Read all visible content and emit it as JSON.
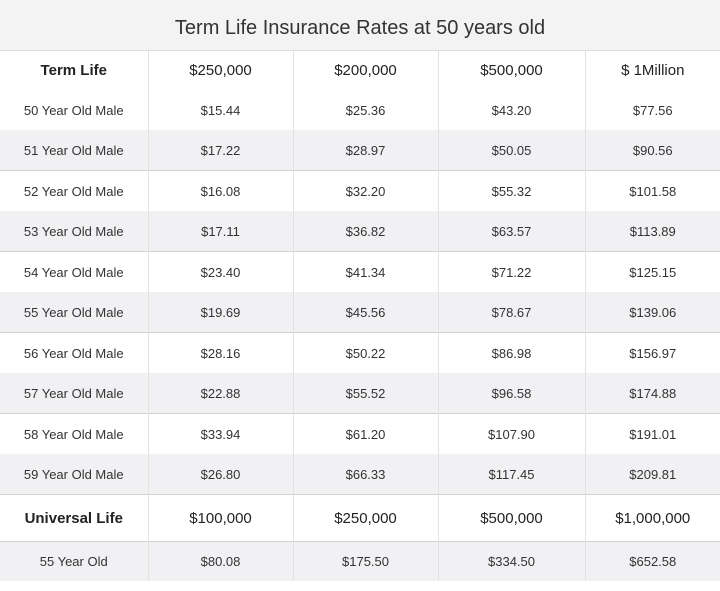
{
  "title": "Term Life Insurance Rates at 50 years old",
  "term_life": {
    "header": [
      "Term Life",
      "$250,000",
      "$200,000",
      "$500,000",
      "$ 1Million"
    ],
    "rows": [
      [
        "50 Year Old Male",
        "$15.44",
        "$25.36",
        "$43.20",
        "$77.56"
      ],
      [
        "51 Year Old Male",
        "$17.22",
        "$28.97",
        "$50.05",
        "$90.56"
      ],
      [
        "52 Year Old Male",
        "$16.08",
        "$32.20",
        "$55.32",
        "$101.58"
      ],
      [
        "53 Year Old Male",
        "$17.11",
        "$36.82",
        "$63.57",
        "$113.89"
      ],
      [
        "54 Year Old Male",
        "$23.40",
        "$41.34",
        "$71.22",
        "$125.15"
      ],
      [
        "55 Year Old Male",
        "$19.69",
        "$45.56",
        "$78.67",
        "$139.06"
      ],
      [
        "56 Year Old Male",
        "$28.16",
        "$50.22",
        "$86.98",
        "$156.97"
      ],
      [
        "57 Year Old Male",
        "$22.88",
        "$55.52",
        "$96.58",
        "$174.88"
      ],
      [
        "58 Year Old Male",
        "$33.94",
        "$61.20",
        "$107.90",
        "$191.01"
      ],
      [
        "59 Year Old Male",
        "$26.80",
        "$66.33",
        "$117.45",
        "$209.81"
      ]
    ]
  },
  "universal_life": {
    "header": [
      "Universal Life",
      "$100,000",
      "$250,000",
      "$500,000",
      "$1,000,000"
    ],
    "rows": [
      [
        "55 Year Old",
        "$80.08",
        "$175.50",
        "$334.50",
        "$652.58"
      ]
    ]
  }
}
